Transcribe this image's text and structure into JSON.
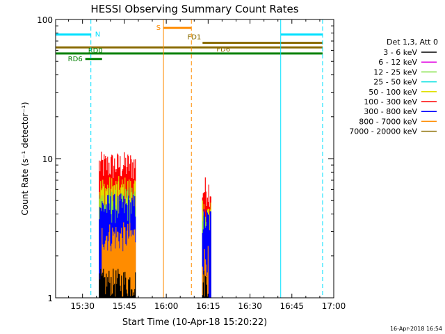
{
  "chart_data": {
    "type": "line",
    "title": "HESSI Observing Summary Count Rates",
    "xlabel": "Start Time (10-Apr-18 15:20:22)",
    "ylabel": "Count Rate (s⁻¹ detector⁻¹)",
    "y_scale": "log",
    "ylim": [
      1,
      100
    ],
    "xlim": [
      "15:20:22",
      "17:00:00"
    ],
    "x_ticks": [
      "15:30",
      "15:45",
      "16:00",
      "16:15",
      "16:30",
      "16:45",
      "17:00"
    ],
    "y_ticks": [
      "1",
      "10",
      "100"
    ],
    "timestamp": "16-Apr-2018 16:54",
    "legend": {
      "placement": "right",
      "header": "Det 1,3, Att 0",
      "entries": [
        {
          "name": "3 - 6 keV",
          "color": "#000000"
        },
        {
          "name": "6 - 12 keV",
          "color": "#e000e0"
        },
        {
          "name": "12 - 25 keV",
          "color": "#80e040"
        },
        {
          "name": "25 - 50 keV",
          "color": "#00e0e0"
        },
        {
          "name": "50 - 100 keV",
          "color": "#e0e000"
        },
        {
          "name": "100 - 300 keV",
          "color": "#ff0000"
        },
        {
          "name": "300 - 800 keV",
          "color": "#0000ff"
        },
        {
          "name": "800 - 7000 keV",
          "color": "#ff8c00"
        },
        {
          "name": "7000 - 20000 keV",
          "color": "#8b6d00"
        }
      ]
    },
    "series": [
      {
        "name": "100 - 300 keV",
        "color": "#ff0000",
        "segments": [
          {
            "start": "15:36",
            "end": "15:49",
            "level": 9
          },
          {
            "start": "16:13",
            "end": "16:16",
            "level": 6
          }
        ]
      },
      {
        "name": "50 - 100 keV",
        "color": "#e0e000",
        "segments": [
          {
            "start": "15:36",
            "end": "15:49",
            "level": 6
          },
          {
            "start": "16:13",
            "end": "16:16",
            "level": 4
          }
        ]
      },
      {
        "name": "12 - 25 keV",
        "color": "#80e040",
        "segments": [
          {
            "start": "15:36",
            "end": "15:49",
            "level": 5
          },
          {
            "start": "16:13",
            "end": "16:15",
            "level": 3.5
          }
        ]
      },
      {
        "name": "300 - 800 keV",
        "color": "#0000ff",
        "segments": [
          {
            "start": "15:36",
            "end": "15:49",
            "level": 4.5
          },
          {
            "start": "16:13",
            "end": "16:16",
            "level": 3.6
          }
        ]
      },
      {
        "name": "800 - 7000 keV",
        "color": "#ff8c00",
        "segments": [
          {
            "start": "15:37",
            "end": "15:49",
            "level": 2.8
          },
          {
            "start": "16:13",
            "end": "16:15",
            "level": 1.9
          }
        ]
      },
      {
        "name": "3 - 6 keV",
        "color": "#000000",
        "segments": [
          {
            "start": "15:36",
            "end": "15:49",
            "level": 1.3
          },
          {
            "start": "16:13",
            "end": "16:15",
            "level": 1.3
          }
        ]
      }
    ],
    "flags": [
      {
        "label": "N",
        "color": "#00e0ff",
        "level": 78,
        "segments": [
          {
            "start": "15:20:22",
            "end": "15:33"
          },
          {
            "start": "16:41",
            "end": "16:56"
          }
        ]
      },
      {
        "label": "S",
        "color": "#ff8c00",
        "level": 87,
        "segments": [
          {
            "start": "15:59",
            "end": "16:09"
          }
        ]
      },
      {
        "label": "FD1",
        "color": "#8b6d00",
        "level": 68,
        "segments": [
          {
            "start": "16:13",
            "end": "16:56"
          }
        ]
      },
      {
        "label": "FD6",
        "color": "#8b6d00",
        "level": 63,
        "segments": [
          {
            "start": "15:20:22",
            "end": "16:56"
          }
        ]
      },
      {
        "label": "RD0",
        "color": "#008000",
        "level": 57,
        "segments": [
          {
            "start": "15:20:22",
            "end": "16:56"
          }
        ]
      },
      {
        "label": "RD6",
        "color": "#008000",
        "level": 52,
        "segments": [
          {
            "start": "15:31",
            "end": "15:37"
          }
        ]
      }
    ],
    "vertical_lines": [
      {
        "time": "15:20:22",
        "color": "#00e0ff",
        "style": "solid"
      },
      {
        "time": "15:33",
        "color": "#00e0ff",
        "style": "dashed"
      },
      {
        "time": "15:59",
        "color": "#ff8c00",
        "style": "solid"
      },
      {
        "time": "16:09",
        "color": "#ff8c00",
        "style": "dashed"
      },
      {
        "time": "16:41",
        "color": "#00e0ff",
        "style": "solid"
      },
      {
        "time": "16:56",
        "color": "#00e0ff",
        "style": "dashed"
      }
    ]
  }
}
